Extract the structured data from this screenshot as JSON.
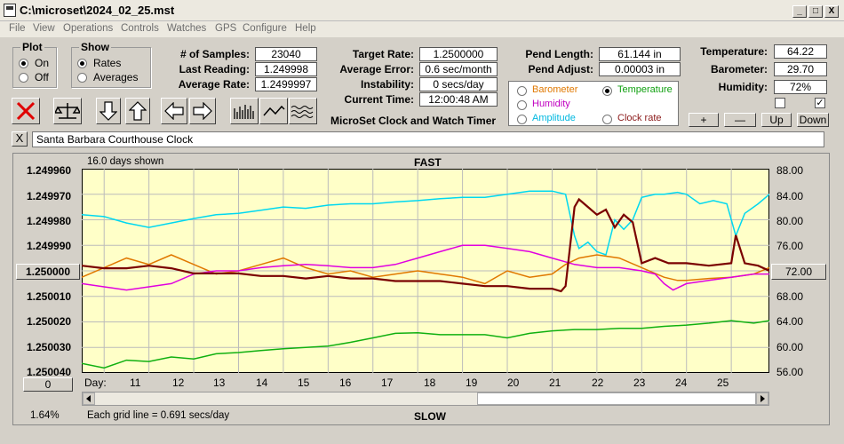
{
  "window": {
    "title": "C:\\microset\\2024_02_25.mst",
    "min": "_",
    "max": "□",
    "close": "X"
  },
  "menu": [
    "File",
    "View",
    "Operations",
    "Controls",
    "Watches",
    "GPS",
    "Configure",
    "Help"
  ],
  "plot_group": {
    "label": "Plot",
    "on": "On",
    "off": "Off",
    "selected": "On"
  },
  "show_group": {
    "label": "Show",
    "rates": "Rates",
    "averages": "Averages",
    "selected": "Rates"
  },
  "fields": {
    "samples": {
      "label": "# of Samples:",
      "value": "23040"
    },
    "last_reading": {
      "label": "Last Reading:",
      "value": "1.249998"
    },
    "average_rate": {
      "label": "Average Rate:",
      "value": "1.2499997"
    },
    "target_rate": {
      "label": "Target Rate:",
      "value": "1.2500000"
    },
    "average_error": {
      "label": "Average Error:",
      "value": "0.6 sec/month"
    },
    "instability": {
      "label": "Instability:",
      "value": "0 secs/day"
    },
    "current_time": {
      "label": "Current Time:",
      "value": "12:00:48 AM"
    },
    "pend_length": {
      "label": "Pend Length:",
      "value": "61.144 in"
    },
    "pend_adjust": {
      "label": "Pend Adjust:",
      "value": "0.00003 in"
    },
    "temperature": {
      "label": "Temperature:",
      "value": "64.22"
    },
    "barometer": {
      "label": "Barometer:",
      "value": "29.70"
    },
    "humidity": {
      "label": "Humidity:",
      "value": "72%"
    }
  },
  "app_caption": "MicroSet Clock and Watch Timer",
  "sensor_options": [
    {
      "label": "Barometer",
      "color": "#e07800",
      "selected": false
    },
    {
      "label": "Temperature",
      "color": "#10a010",
      "selected": true
    },
    {
      "label": "Humidity",
      "color": "#c000c0",
      "selected": false
    },
    {
      "label": "Amplitude",
      "color": "#00b8e0",
      "selected": false
    },
    {
      "label": "Clock rate",
      "color": "#8b1a1a",
      "selected": false
    }
  ],
  "adjust_buttons": {
    "plus": "+",
    "minus": "—",
    "up": "Up",
    "down": "Down"
  },
  "checkboxes": {
    "left": false,
    "right": true,
    "check_mark": "✓"
  },
  "clock_name": "Santa Barbara Courthouse Clock",
  "clear_label": "X",
  "chart": {
    "days_shown": "16.0 days shown",
    "fast": "FAST",
    "slow": "SLOW",
    "center_button": "1.250000",
    "zero_button": "0",
    "right_button": "72.00",
    "percent": "1.64%",
    "grid_note": "Each grid line = 0.691 secs/day",
    "day_label": "Day:",
    "left_ticks": [
      "1.249960",
      "1.249970",
      "1.249980",
      "1.249990",
      "1.250010",
      "1.250020",
      "1.250030",
      "1.250040"
    ],
    "right_ticks": [
      "88.00",
      "84.00",
      "80.00",
      "76.00",
      "68.00",
      "64.00",
      "60.00",
      "56.00"
    ],
    "x_ticks": [
      "11",
      "12",
      "13",
      "14",
      "15",
      "16",
      "17",
      "18",
      "19",
      "20",
      "21",
      "22",
      "23",
      "24",
      "25"
    ]
  },
  "chart_data": {
    "type": "line",
    "x_label": "Day:",
    "xlim": [
      10.5,
      25.85
    ],
    "ylim_left": [
      1.24996,
      1.25004
    ],
    "ylim_right": [
      56,
      88
    ],
    "left_axis_inverted": true,
    "grid": true,
    "series": [
      {
        "color": "#00d8f0",
        "axis": "right",
        "x": [
          10.5,
          11,
          11.5,
          12,
          12.5,
          13,
          13.5,
          14,
          14.5,
          15,
          15.5,
          16,
          16.5,
          17,
          17.5,
          18,
          18.5,
          19,
          19.5,
          20,
          20.5,
          21,
          21.3,
          21.5,
          21.6,
          21.8,
          22,
          22.2,
          22.4,
          22.6,
          22.8,
          23,
          23.3,
          23.5,
          23.8,
          24,
          24.3,
          24.6,
          24.9,
          25.1,
          25.3,
          25.6,
          25.85
        ],
        "y": [
          80.8,
          80.5,
          79.5,
          78.8,
          79.5,
          80.2,
          80.8,
          81.0,
          81.5,
          82.0,
          81.8,
          82.3,
          82.5,
          82.5,
          82.8,
          83.0,
          83.3,
          83.5,
          83.5,
          84.0,
          84.5,
          84.5,
          84.0,
          77.5,
          75.5,
          76.5,
          75.0,
          74.5,
          80.0,
          78.5,
          80.0,
          83.5,
          84.0,
          84.0,
          84.3,
          84.0,
          82.5,
          83.0,
          82.5,
          77.5,
          81.0,
          82.5,
          84.0
        ]
      },
      {
        "color": "#e07800",
        "axis": "right",
        "x": [
          10.5,
          11,
          11.5,
          12,
          12.5,
          13,
          13.5,
          14,
          14.5,
          15,
          15.5,
          16,
          16.5,
          17,
          17.5,
          18,
          18.5,
          19,
          19.5,
          20,
          20.5,
          21,
          21.3,
          21.6,
          22,
          22.5,
          23,
          23.5,
          23.8,
          24,
          24.5,
          25,
          25.5,
          25.85
        ],
        "y": [
          71.0,
          72.5,
          74.0,
          73.0,
          74.5,
          73.0,
          71.5,
          72.0,
          73.0,
          74.0,
          72.5,
          71.5,
          72.0,
          71.0,
          71.5,
          72.0,
          71.5,
          71.0,
          70.0,
          72.0,
          71.0,
          71.5,
          73.0,
          74.0,
          74.5,
          74.0,
          72.5,
          71.0,
          70.5,
          70.5,
          70.8,
          71.0,
          71.5,
          72.5
        ]
      },
      {
        "color": "#e000e0",
        "axis": "right",
        "x": [
          10.5,
          11,
          11.5,
          12,
          12.5,
          13,
          13.5,
          14,
          14.5,
          15,
          15.5,
          16,
          16.5,
          17,
          17.5,
          18,
          18.5,
          19,
          19.5,
          20,
          20.5,
          21,
          21.5,
          22,
          22.5,
          23,
          23.3,
          23.5,
          23.7,
          24,
          24.5,
          25,
          25.5,
          25.85
        ],
        "y": [
          70.0,
          69.5,
          69.0,
          69.5,
          70.0,
          71.5,
          72.0,
          72.0,
          72.5,
          72.8,
          73.0,
          72.8,
          72.5,
          72.5,
          73.0,
          74.0,
          75.0,
          76.0,
          76.0,
          75.5,
          75.0,
          74.0,
          73.0,
          72.5,
          72.5,
          72.0,
          71.5,
          70.0,
          69.0,
          70.0,
          70.5,
          71.0,
          71.5,
          71.5
        ]
      },
      {
        "color": "#10b010",
        "axis": "right",
        "x": [
          10.5,
          11,
          11.5,
          12,
          12.5,
          13,
          13.5,
          14,
          14.5,
          15,
          15.5,
          16,
          16.5,
          17,
          17.5,
          18,
          18.5,
          19,
          19.5,
          20,
          20.5,
          21,
          21.5,
          22,
          22.5,
          23,
          23.5,
          24,
          24.5,
          25,
          25.5,
          25.85
        ],
        "y": [
          57.5,
          56.8,
          58.0,
          57.8,
          58.5,
          58.2,
          59.0,
          59.2,
          59.5,
          59.8,
          60.0,
          60.2,
          60.8,
          61.5,
          62.2,
          62.3,
          62.0,
          62.0,
          62.0,
          61.5,
          62.2,
          62.6,
          62.8,
          62.8,
          63.0,
          63.0,
          63.3,
          63.5,
          63.8,
          64.2,
          63.8,
          64.2
        ]
      },
      {
        "color": "#7a0000",
        "axis": "left",
        "x": [
          10.5,
          11,
          11.5,
          12,
          12.5,
          13,
          13.5,
          14,
          14.5,
          15,
          15.5,
          16,
          16.5,
          17,
          17.5,
          18,
          18.5,
          19,
          19.5,
          20,
          20.5,
          21,
          21.2,
          21.3,
          21.5,
          21.6,
          21.8,
          22,
          22.2,
          22.4,
          22.6,
          22.8,
          23,
          23.3,
          23.6,
          24,
          24.5,
          25,
          25.1,
          25.3,
          25.6,
          25.85
        ],
        "y": [
          1.249998,
          1.249999,
          1.249999,
          1.249998,
          1.249999,
          1.250001,
          1.250001,
          1.250001,
          1.250002,
          1.250002,
          1.250003,
          1.250002,
          1.250003,
          1.250003,
          1.250004,
          1.250004,
          1.250004,
          1.250005,
          1.250006,
          1.250006,
          1.250007,
          1.250007,
          1.250008,
          1.250006,
          1.249975,
          1.249972,
          1.249975,
          1.249978,
          1.249976,
          1.249983,
          1.249978,
          1.249981,
          1.249997,
          1.249995,
          1.249997,
          1.249997,
          1.249998,
          1.249997,
          1.249986,
          1.249997,
          1.249998,
          1.25
        ]
      }
    ]
  }
}
